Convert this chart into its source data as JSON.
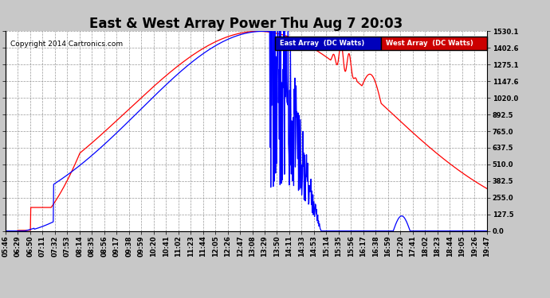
{
  "title": "East & West Array Power Thu Aug 7 20:03",
  "copyright": "Copyright 2014 Cartronics.com",
  "legend_east": "East Array  (DC Watts)",
  "legend_west": "West Array  (DC Watts)",
  "east_color": "#0000FF",
  "west_color": "#FF0000",
  "legend_east_bg": "#0000BB",
  "legend_west_bg": "#CC0000",
  "yticks": [
    0.0,
    127.5,
    255.0,
    382.5,
    510.0,
    637.5,
    765.0,
    892.5,
    1020.0,
    1147.6,
    1275.1,
    1402.6,
    1530.1
  ],
  "ymax": 1530.1,
  "ymin": 0.0,
  "xtick_labels": [
    "05:46",
    "06:29",
    "06:50",
    "07:11",
    "07:32",
    "07:53",
    "08:14",
    "08:35",
    "08:56",
    "09:17",
    "09:38",
    "09:59",
    "10:20",
    "10:41",
    "11:02",
    "11:23",
    "11:44",
    "12:05",
    "12:26",
    "12:47",
    "13:08",
    "13:29",
    "13:50",
    "14:11",
    "14:33",
    "14:53",
    "15:14",
    "15:35",
    "15:56",
    "16:17",
    "16:38",
    "16:59",
    "17:20",
    "17:41",
    "18:02",
    "18:23",
    "18:44",
    "19:05",
    "19:26",
    "19:47"
  ],
  "background_color": "#C8C8C8",
  "plot_bg_color": "#FFFFFF",
  "grid_color": "#999999",
  "title_fontsize": 12,
  "tick_fontsize": 6,
  "copyright_fontsize": 6.5
}
